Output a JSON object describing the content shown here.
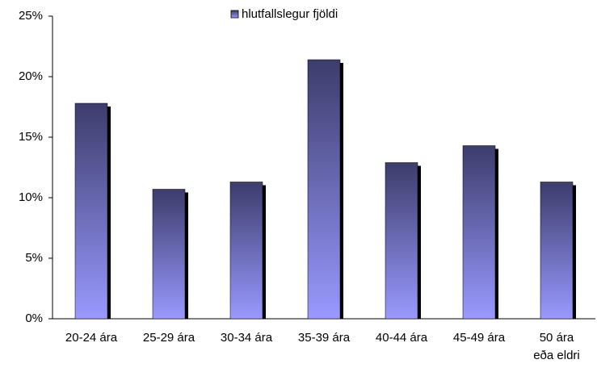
{
  "chart_data": {
    "type": "bar",
    "categories": [
      "20-24 ára",
      "25-29 ára",
      "30-34 ára",
      "35-39 ára",
      "40-44 ára",
      "45-49 ára",
      "50 ára\neða eldri"
    ],
    "series": [
      {
        "name": "hlutfallslegur fjöldi",
        "color": "#9999ff",
        "values": [
          17.8,
          10.7,
          11.3,
          21.4,
          12.9,
          14.3,
          11.3
        ]
      }
    ],
    "ylim": [
      0,
      25
    ],
    "yticks": [
      {
        "value": 0,
        "label": "0%"
      },
      {
        "value": 5,
        "label": "5%"
      },
      {
        "value": 10,
        "label": "10%"
      },
      {
        "value": 15,
        "label": "15%"
      },
      {
        "value": 20,
        "label": "20%"
      },
      {
        "value": 25,
        "label": "25%"
      }
    ],
    "grid": false,
    "legend": "top"
  }
}
